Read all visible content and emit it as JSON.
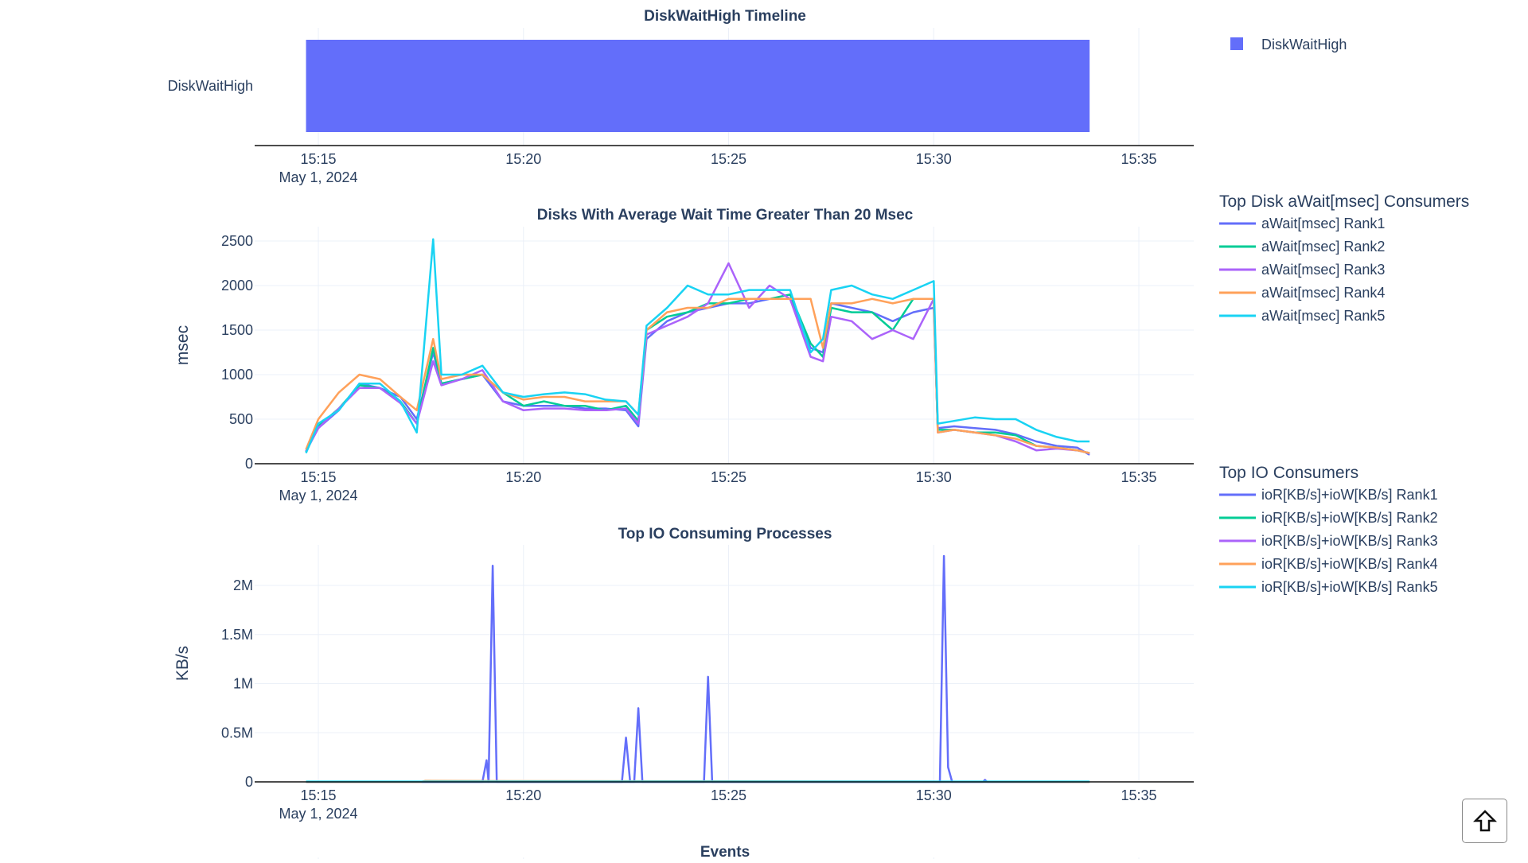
{
  "colors": {
    "rank1": "#636efa",
    "rank2": "#00cc96",
    "rank3": "#ab63fa",
    "rank4": "#FFA15A",
    "rank5": "#19d3f3",
    "text": "#2a3f5f",
    "grid": "#ebf0f8"
  },
  "x_ticks": [
    "15:15",
    "15:20",
    "15:25",
    "15:30",
    "15:35"
  ],
  "x_date": "May 1, 2024",
  "chart_data": [
    {
      "type": "timeline",
      "title": "DiskWaitHigh Timeline",
      "categories": [
        "DiskWaitHigh"
      ],
      "bars": [
        {
          "name": "DiskWaitHigh",
          "start": "15:14:42",
          "end": "15:33:48"
        }
      ],
      "legend": [
        "DiskWaitHigh"
      ],
      "xlim": [
        "15:13:45",
        "15:36:45"
      ]
    },
    {
      "type": "line",
      "title": "Disks With Average Wait Time Greater Than 20 Msec",
      "ylabel": "msec",
      "ylim": [
        0,
        2500
      ],
      "y_ticks": [
        "0",
        "500",
        "1000",
        "1500",
        "2000",
        "2500"
      ],
      "y_tick_values": [
        0,
        500,
        1000,
        1500,
        2000,
        2500
      ],
      "legend_title": "Top Disk aWait[msec] Consumers",
      "x_minutes": [
        14.7,
        15,
        15.5,
        16,
        16.5,
        17,
        17.4,
        17.8,
        18,
        18.5,
        19,
        19.5,
        20,
        20.5,
        21,
        21.5,
        22,
        22.5,
        22.8,
        23,
        23.5,
        24,
        24.5,
        25,
        25.5,
        26,
        26.5,
        27,
        27.3,
        27.5,
        28,
        28.5,
        29,
        29.5,
        30,
        30.1,
        30.5,
        31,
        31.5,
        32,
        32.5,
        33,
        33.5,
        33.8
      ],
      "series": [
        {
          "name": "aWait[msec] Rank1",
          "values": [
            140,
            400,
            600,
            900,
            850,
            750,
            500,
            1250,
            900,
            950,
            1000,
            700,
            650,
            650,
            650,
            620,
            620,
            600,
            420,
            1400,
            1600,
            1700,
            1750,
            1800,
            1800,
            1850,
            1850,
            1300,
            1250,
            1800,
            1750,
            1700,
            1600,
            1700,
            1750,
            400,
            420,
            400,
            380,
            330,
            250,
            200,
            180,
            100
          ]
        },
        {
          "name": "aWait[msec] Rank2",
          "values": [
            130,
            420,
            620,
            880,
            850,
            700,
            450,
            1300,
            900,
            950,
            1000,
            800,
            650,
            700,
            650,
            650,
            600,
            650,
            480,
            1500,
            1650,
            1700,
            1800,
            1800,
            1850,
            1850,
            1900,
            1350,
            1200,
            1750,
            1700,
            1700,
            1500,
            1850,
            1850,
            380,
            380,
            350,
            350,
            320,
            200,
            180,
            150,
            120
          ]
        },
        {
          "name": "aWait[msec] Rank3",
          "values": [
            140,
            400,
            620,
            850,
            850,
            680,
            450,
            1150,
            880,
            950,
            1050,
            700,
            600,
            620,
            620,
            600,
            600,
            620,
            450,
            1450,
            1550,
            1650,
            1800,
            2250,
            1750,
            2000,
            1850,
            1200,
            1150,
            1650,
            1600,
            1400,
            1500,
            1400,
            1850,
            350,
            380,
            350,
            320,
            250,
            150,
            170,
            150,
            120
          ]
        },
        {
          "name": "aWait[msec] Rank4",
          "values": [
            160,
            500,
            800,
            1000,
            950,
            750,
            600,
            1400,
            950,
            1000,
            1000,
            800,
            720,
            750,
            750,
            700,
            700,
            700,
            550,
            1500,
            1700,
            1750,
            1750,
            1850,
            1850,
            1850,
            1850,
            1850,
            1300,
            1800,
            1800,
            1850,
            1800,
            1850,
            1850,
            350,
            380,
            350,
            320,
            280,
            200,
            180,
            150,
            120
          ]
        },
        {
          "name": "aWait[msec] Rank5",
          "values": [
            120,
            450,
            600,
            900,
            900,
            700,
            350,
            2520,
            1000,
            1000,
            1100,
            800,
            750,
            780,
            800,
            780,
            720,
            700,
            550,
            1550,
            1750,
            2000,
            1900,
            1900,
            1950,
            1950,
            1950,
            1250,
            1400,
            1950,
            2000,
            1900,
            1850,
            1950,
            2050,
            450,
            480,
            520,
            500,
            500,
            380,
            300,
            250,
            250
          ]
        }
      ]
    },
    {
      "type": "line",
      "title": "Top IO Consuming Processes",
      "ylabel": "KB/s",
      "ylim": [
        0,
        2300000
      ],
      "y_ticks": [
        "0",
        "0.5M",
        "1M",
        "1.5M",
        "2M"
      ],
      "y_tick_values": [
        0,
        500000,
        1000000,
        1500000,
        2000000
      ],
      "legend_title": "Top IO Consumers",
      "series": [
        {
          "name": "ioR[KB/s]+ioW[KB/s] Rank1",
          "x_minutes": [
            14.7,
            19.0,
            19.1,
            19.15,
            19.25,
            19.35,
            22.4,
            22.5,
            22.6,
            22.7,
            22.8,
            22.9,
            24.4,
            24.5,
            24.6,
            30.15,
            30.25,
            30.35,
            30.45,
            31.2,
            31.25,
            31.3,
            33.8
          ],
          "values": [
            0,
            0,
            220000,
            0,
            2200000,
            0,
            0,
            450000,
            0,
            0,
            750000,
            0,
            0,
            1070000,
            0,
            0,
            2300000,
            150000,
            0,
            0,
            20000,
            0,
            0
          ]
        },
        {
          "name": "ioR[KB/s]+ioW[KB/s] Rank2",
          "x_minutes": [
            14.7,
            33.8
          ],
          "values": [
            0,
            0
          ]
        },
        {
          "name": "ioR[KB/s]+ioW[KB/s] Rank3",
          "x_minutes": [
            14.7,
            33.8
          ],
          "values": [
            0,
            0
          ]
        },
        {
          "name": "ioR[KB/s]+ioW[KB/s] Rank4",
          "x_minutes": [
            14.7,
            17.5,
            17.6,
            33.8
          ],
          "values": [
            0,
            0,
            10000,
            0
          ]
        },
        {
          "name": "ioR[KB/s]+ioW[KB/s] Rank5",
          "x_minutes": [
            14.7,
            33.8
          ],
          "values": [
            3000,
            3000
          ]
        }
      ]
    },
    {
      "type": "timeline",
      "title": "Events"
    }
  ],
  "scroll_top_label": "Scroll to top"
}
